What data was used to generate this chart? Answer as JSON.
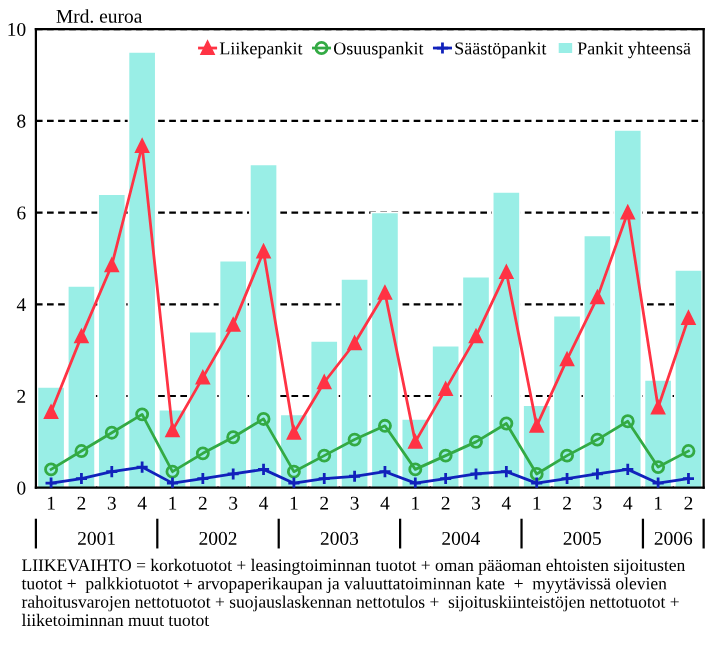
{
  "chart_data": {
    "type": "bar",
    "ylabel": "Mrd. euroa",
    "categories": [
      "1",
      "2",
      "3",
      "4",
      "1",
      "2",
      "3",
      "4",
      "1",
      "2",
      "3",
      "4",
      "1",
      "2",
      "3",
      "4",
      "1",
      "2",
      "3",
      "4",
      "1",
      "2"
    ],
    "series": [
      {
        "name": "Pankit yhteensä",
        "color": "#99eee6",
        "values": [
          2.2,
          4.4,
          6.4,
          9.5,
          1.7,
          3.4,
          4.95,
          7.05,
          1.6,
          3.2,
          4.55,
          6.0,
          1.5,
          3.1,
          4.6,
          6.45,
          1.8,
          3.75,
          5.5,
          7.8,
          2.35,
          4.75
        ]
      },
      {
        "name": "Liikepankit",
        "type": "line",
        "color": "#ff3344",
        "marker": "triangle",
        "values": [
          1.65,
          3.3,
          4.85,
          7.45,
          1.25,
          2.4,
          3.55,
          5.15,
          1.2,
          2.3,
          3.15,
          4.25,
          1.0,
          2.15,
          3.3,
          4.7,
          1.35,
          2.8,
          4.15,
          6.0,
          1.75,
          3.7
        ]
      },
      {
        "name": "Osuuspankit",
        "type": "line",
        "color": "#33aa44",
        "marker": "circle",
        "values": [
          0.4,
          0.8,
          1.2,
          1.6,
          0.35,
          0.75,
          1.1,
          1.5,
          0.35,
          0.7,
          1.05,
          1.35,
          0.4,
          0.7,
          1.0,
          1.4,
          0.3,
          0.7,
          1.05,
          1.45,
          0.45,
          0.8
        ]
      },
      {
        "name": "Säästöpankit",
        "type": "line",
        "color": "#1122bb",
        "marker": "cross",
        "values": [
          0.1,
          0.2,
          0.35,
          0.45,
          0.1,
          0.2,
          0.3,
          0.4,
          0.1,
          0.2,
          0.25,
          0.35,
          0.1,
          0.2,
          0.3,
          0.35,
          0.1,
          0.2,
          0.3,
          0.4,
          0.1,
          0.2
        ]
      }
    ],
    "ylim": [
      0,
      10
    ],
    "yticks": [
      0,
      2,
      4,
      6,
      8,
      10
    ],
    "grid": "y",
    "line_style": "solid",
    "legend": "top right",
    "annotations": [
      "2001",
      "2002",
      "2003",
      "2004",
      "2005",
      "2006",
      "LIIKEVAIHTO = korkotuotot + leasingtoiminnan tuotot + oman pääoman ehtoisten sijoitusten tuotot +  palkkiotuotot + arvopaperikaupan ja valuuttatoiminnan kate  +  myytävissä olevien rahoitusvarojen nettotuotot + suojauslaskennan nettotulos +  sijoituskiinteistöjen nettotuotot + liiketoiminnan muut tuotot"
    ]
  }
}
